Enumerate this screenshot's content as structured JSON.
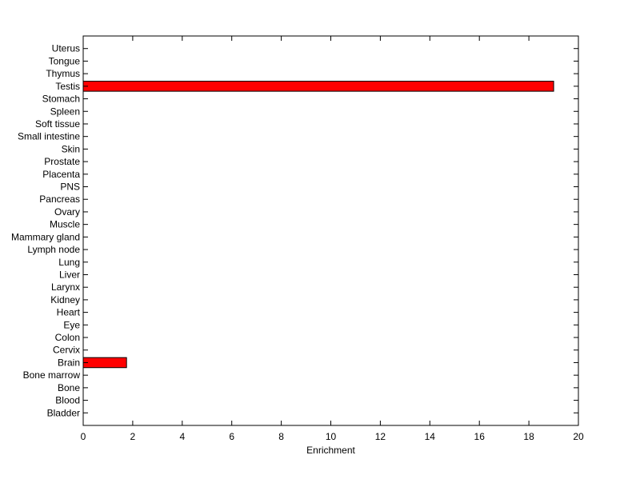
{
  "chart_data": {
    "type": "bar",
    "orientation": "horizontal",
    "categories": [
      "Bladder",
      "Blood",
      "Bone",
      "Bone marrow",
      "Brain",
      "Cervix",
      "Colon",
      "Eye",
      "Heart",
      "Kidney",
      "Larynx",
      "Liver",
      "Lung",
      "Lymph node",
      "Mammary gland",
      "Muscle",
      "Ovary",
      "Pancreas",
      "PNS",
      "Placenta",
      "Prostate",
      "Skin",
      "Small intestine",
      "Soft tissue",
      "Spleen",
      "Stomach",
      "Testis",
      "Thymus",
      "Tongue",
      "Uterus"
    ],
    "values": [
      0,
      0,
      0,
      0,
      1.75,
      0,
      0,
      0,
      0,
      0,
      0,
      0,
      0,
      0,
      0,
      0,
      0,
      0,
      0,
      0,
      0,
      0,
      0,
      0,
      0,
      0,
      19,
      0,
      0,
      0
    ],
    "xlabel": "Enrichment",
    "ylabel": "",
    "title": "",
    "xlim": [
      0,
      20
    ],
    "xticks": [
      0,
      2,
      4,
      6,
      8,
      10,
      12,
      14,
      16,
      18,
      20
    ],
    "grid": false,
    "bar_color": "#ff0000"
  }
}
